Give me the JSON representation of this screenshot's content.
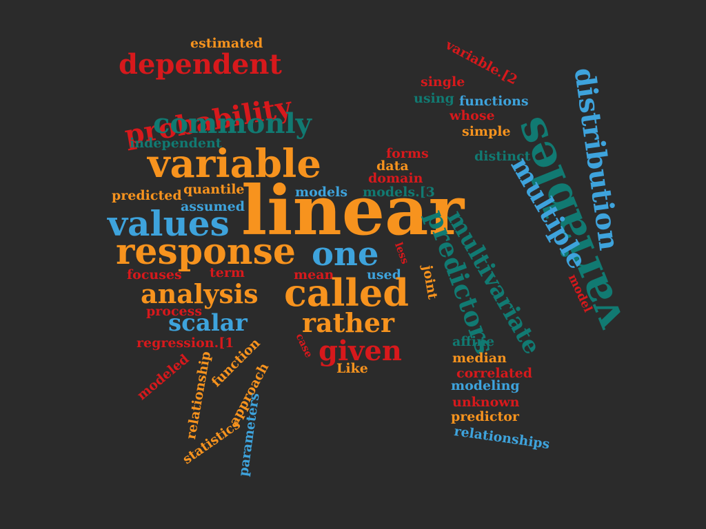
{
  "colors": {
    "background": "#2b2b2b",
    "orange": "#f7931e",
    "blue": "#3ea3dc",
    "red": "#d7191c",
    "teal": "#117a72"
  },
  "words": [
    "estimated",
    "dependent",
    "probability",
    "commonly",
    "independent",
    "variable",
    "predicted",
    "quantile",
    "assumed",
    "models",
    "models.[3",
    "values",
    "linear",
    "response",
    "one",
    "focuses",
    "term",
    "mean",
    "used",
    "analysis",
    "called",
    "process",
    "scalar",
    "rather",
    "regression.[1",
    "given",
    "Like",
    "case",
    "modeled",
    "relationship",
    "function",
    "approach",
    "statistics",
    "parameters",
    "variable.[2",
    "single",
    "using",
    "functions",
    "whose",
    "simple",
    "forms",
    "distinct",
    "data",
    "domain",
    "variables",
    "distribution",
    "multiple",
    "multivariate",
    "predictors",
    "joint",
    "less",
    "model",
    "affine",
    "median",
    "correlated",
    "modeling",
    "unknown",
    "predictor",
    "relationships"
  ]
}
